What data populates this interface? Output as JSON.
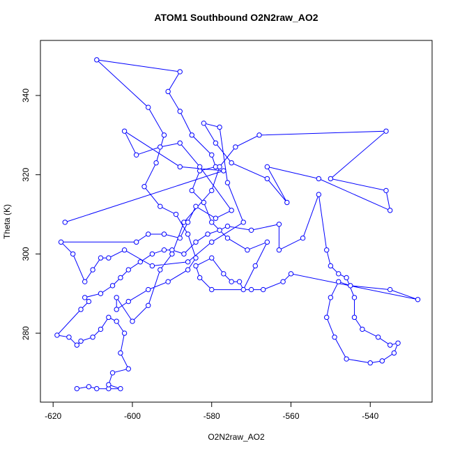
{
  "chart_data": {
    "type": "line",
    "title": "ATOM1 Southbound O2N2raw_AO2",
    "xlabel": "O2N2raw_AO2",
    "ylabel": "Theta (K)",
    "color": "#0000ff",
    "markers": true,
    "grid": false,
    "x": [
      -614,
      -611,
      -609,
      -606,
      -603,
      -606,
      -605,
      -601,
      -603,
      -602,
      -604,
      -606,
      -608,
      -610,
      -613,
      -614,
      -616,
      -619,
      -613,
      -611,
      -612,
      -608,
      -605,
      -603,
      -601,
      -598,
      -595,
      -592,
      -590,
      -587,
      -584,
      -581,
      -578,
      -576,
      -570,
      -563,
      -563,
      -557,
      -553,
      -551,
      -550,
      -548,
      -546,
      -544,
      -544,
      -542,
      -538,
      -535,
      -533,
      -534,
      -537,
      -540,
      -546,
      -549,
      -551,
      -550,
      -548,
      -545,
      -535,
      -528,
      -560,
      -562,
      -567,
      -570,
      -580,
      -583,
      -584,
      -580,
      -577,
      -575,
      -573,
      -572,
      -569,
      -566,
      -571,
      -576,
      -580,
      -582,
      -585,
      -583,
      -579,
      -580,
      -585,
      -588,
      -591,
      -588,
      -609,
      -596,
      -592,
      -594,
      -597,
      -593,
      -589,
      -586,
      -584,
      -586,
      -591,
      -596,
      -601,
      -604,
      -604,
      -600,
      -596,
      -593,
      -590,
      -587,
      -580,
      -578,
      -574,
      -568,
      -536,
      -550,
      -536,
      -535,
      -553,
      -566,
      -561,
      -566,
      -575,
      -579,
      -582,
      -578,
      -576,
      -572,
      -580,
      -586,
      -595,
      -602,
      -606,
      -608,
      -610,
      -612,
      -615,
      -618,
      -599,
      -596,
      -592,
      -588,
      -586,
      -584,
      -579,
      -575,
      -583,
      -588,
      -593,
      -599,
      -602,
      -588,
      -577,
      -617
    ],
    "y": [
      266,
      266.5,
      266,
      266,
      266,
      267,
      270,
      271,
      275,
      280,
      283,
      284,
      281,
      279,
      278,
      277,
      279,
      279.5,
      286,
      288,
      289,
      290,
      292,
      294,
      296,
      298,
      300,
      301,
      301,
      300,
      303,
      305,
      306,
      307,
      306,
      307.5,
      301,
      304,
      315,
      301,
      297,
      295,
      294,
      289,
      284,
      281,
      279,
      277,
      277.5,
      275,
      273,
      272.5,
      273.5,
      279,
      284,
      289,
      293,
      292,
      291,
      288.5,
      295,
      293,
      291,
      291,
      291,
      294,
      297,
      299,
      295,
      293,
      293,
      291,
      297,
      303,
      301,
      304,
      308,
      313,
      316,
      321,
      322,
      325,
      330,
      336,
      341,
      346,
      349,
      337,
      330,
      323,
      317,
      312,
      310,
      305,
      299,
      296,
      293,
      291,
      288,
      286,
      289,
      283,
      287,
      296,
      300,
      308,
      316,
      322,
      327,
      330,
      331,
      319,
      316,
      311,
      319,
      322,
      313,
      319,
      323,
      328,
      333,
      332,
      318,
      308,
      303,
      298,
      297,
      301,
      299,
      299,
      296,
      293,
      300,
      303,
      303,
      305,
      305,
      304,
      308,
      312,
      309,
      311,
      322,
      328,
      327,
      325,
      331,
      322,
      321,
      308
    ],
    "xlim": [
      -623.2,
      -524.4
    ],
    "ylim": [
      262.6,
      353.9
    ],
    "xticks": [
      -620,
      -600,
      -580,
      -560,
      -540
    ],
    "yticks": [
      280,
      300,
      320,
      340
    ]
  }
}
